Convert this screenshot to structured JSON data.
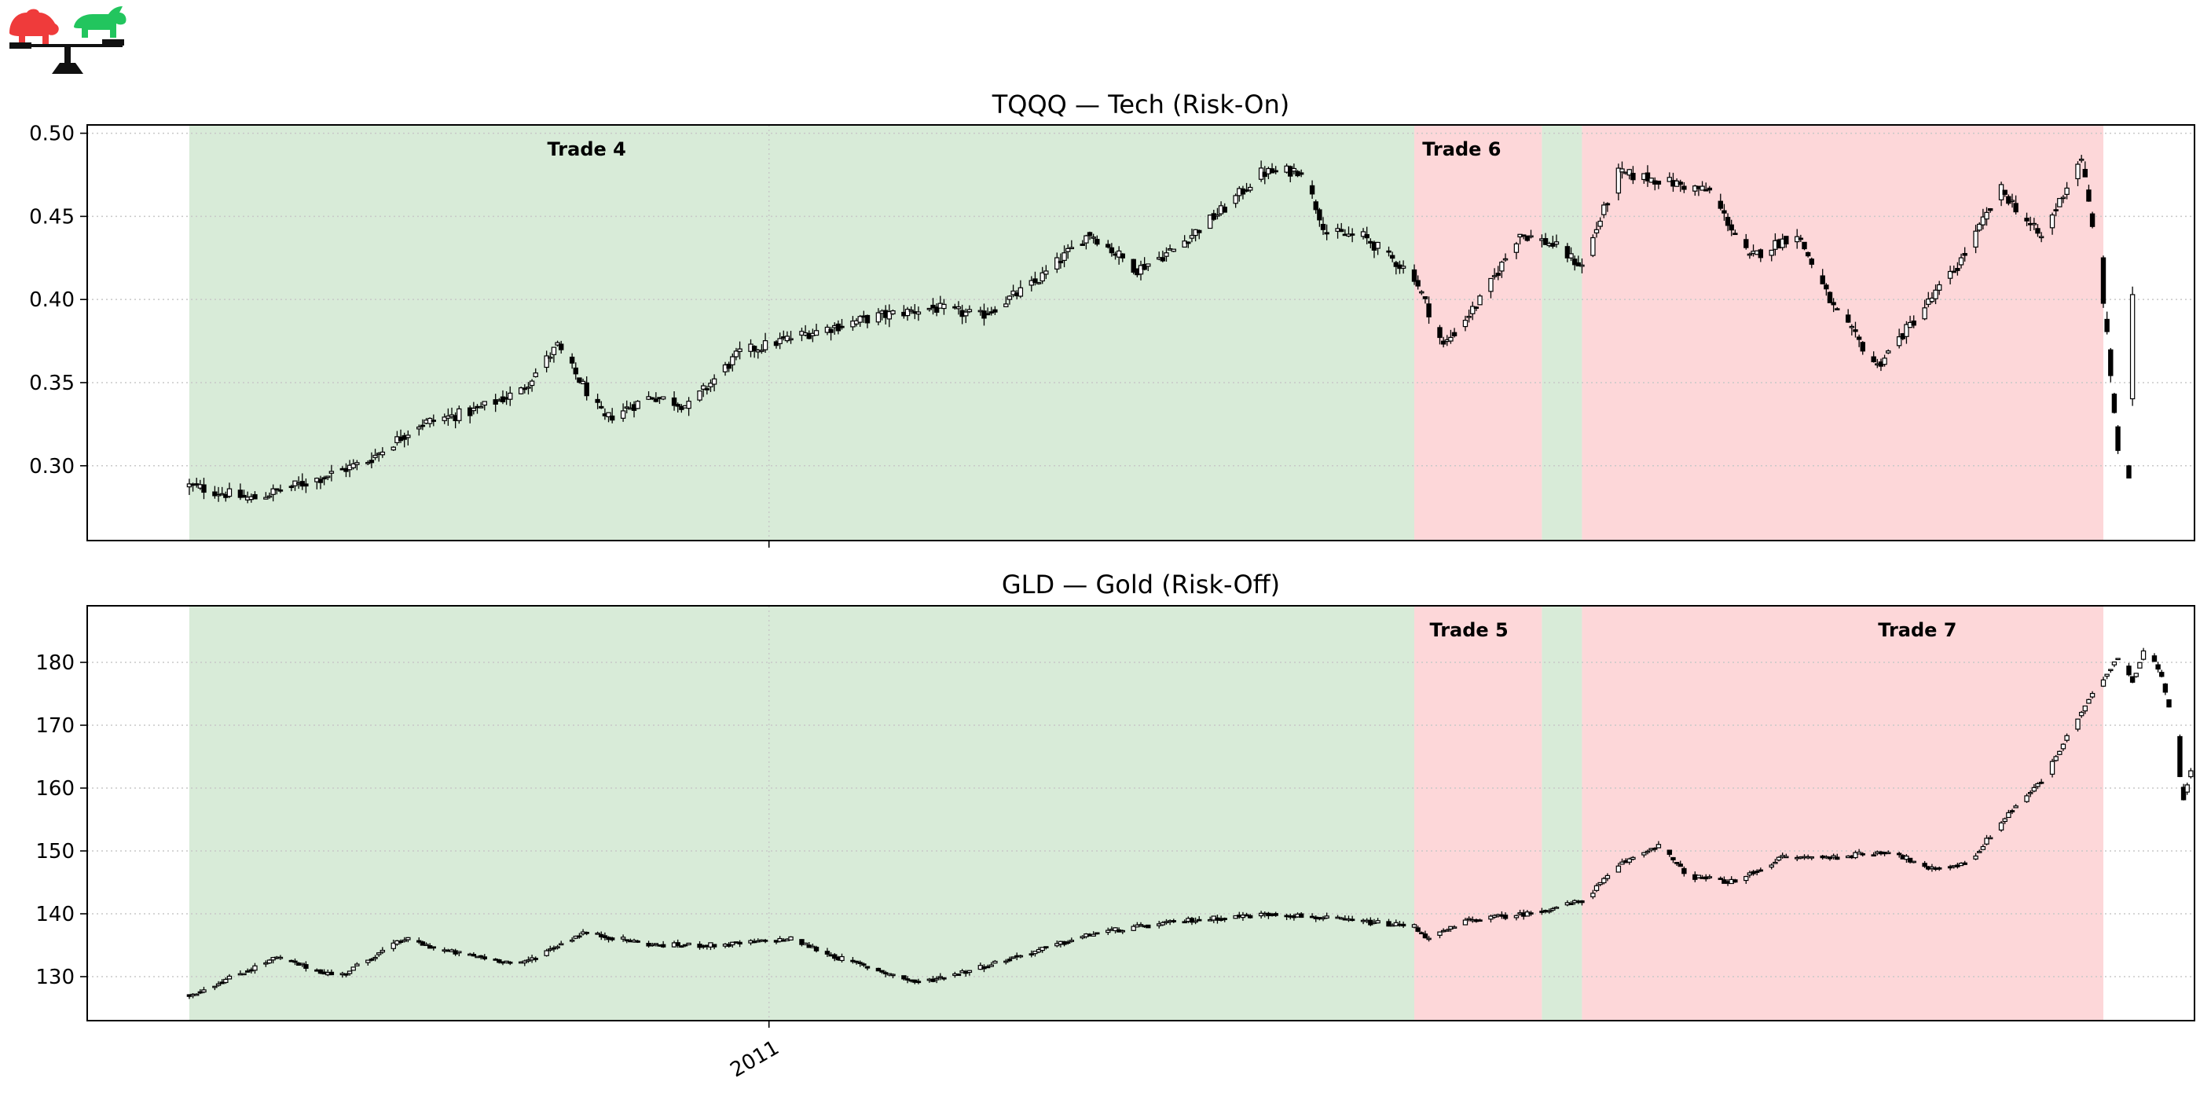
{
  "logo": {
    "bear_color": "#ef3b3b",
    "bull_color": "#22c55e",
    "scale_color": "#111111"
  },
  "colors": {
    "risk_on_shade": "#d8ebd8",
    "risk_off_shade": "#fdd7d9",
    "candle": "#000000",
    "grid": "#c8c8c8"
  },
  "chart_data": [
    {
      "type": "candlestick",
      "title": "TQQQ — Tech (Risk-On)",
      "xlabel": "",
      "ylabel": "",
      "x_tick_labels": [
        {
          "date": "2011-01-01",
          "label": ""
        }
      ],
      "x_range": [
        "2010-06-28",
        "2012-01-27"
      ],
      "ylim": [
        0.255,
        0.505
      ],
      "yticks": [
        "0.30",
        "0.35",
        "0.40",
        "0.45",
        "0.50"
      ],
      "grid": "horizontal dotted",
      "regimes": [
        {
          "start": "2010-07-26",
          "end": "2011-06-27",
          "state": "risk-on"
        },
        {
          "start": "2011-06-27",
          "end": "2011-08-01",
          "state": "risk-off"
        },
        {
          "start": "2011-08-01",
          "end": "2011-08-12",
          "state": "risk-on"
        },
        {
          "start": "2011-08-12",
          "end": "2012-01-02",
          "state": "risk-off"
        }
      ],
      "trades": [
        {
          "label": "Trade 4",
          "date": "2010-11-12"
        },
        {
          "label": "Trade 6",
          "date": "2011-07-10"
        }
      ],
      "price_path": [
        [
          "2010-07-26",
          0.288
        ],
        [
          "2010-08-12",
          0.28
        ],
        [
          "2010-08-30",
          0.292
        ],
        [
          "2010-09-13",
          0.303
        ],
        [
          "2010-09-27",
          0.325
        ],
        [
          "2010-10-12",
          0.333
        ],
        [
          "2010-10-25",
          0.345
        ],
        [
          "2010-11-04",
          0.372
        ],
        [
          "2010-11-17",
          0.328
        ],
        [
          "2010-11-30",
          0.342
        ],
        [
          "2010-12-10",
          0.336
        ],
        [
          "2010-12-24",
          0.368
        ],
        [
          "2011-01-12",
          0.38
        ],
        [
          "2011-01-31",
          0.39
        ],
        [
          "2011-02-15",
          0.395
        ],
        [
          "2011-02-28",
          0.39
        ],
        [
          "2011-03-15",
          0.41
        ],
        [
          "2011-03-30",
          0.44
        ],
        [
          "2011-04-12",
          0.418
        ],
        [
          "2011-04-22",
          0.43
        ],
        [
          "2011-05-06",
          0.455
        ],
        [
          "2011-05-16",
          0.476
        ],
        [
          "2011-05-27",
          0.478
        ],
        [
          "2011-06-03",
          0.44
        ],
        [
          "2011-06-13",
          0.438
        ],
        [
          "2011-06-27",
          0.414
        ],
        [
          "2011-07-05",
          0.372
        ],
        [
          "2011-07-16",
          0.402
        ],
        [
          "2011-07-26",
          0.44
        ],
        [
          "2011-08-04",
          0.433
        ],
        [
          "2011-08-12",
          0.42
        ],
        [
          "2011-08-22",
          0.476
        ],
        [
          "2011-09-02",
          0.472
        ],
        [
          "2011-09-16",
          0.465
        ],
        [
          "2011-09-27",
          0.425
        ],
        [
          "2011-10-10",
          0.44
        ],
        [
          "2011-10-20",
          0.395
        ],
        [
          "2011-11-01",
          0.36
        ],
        [
          "2011-11-12",
          0.39
        ],
        [
          "2011-11-23",
          0.42
        ],
        [
          "2011-12-05",
          0.466
        ],
        [
          "2011-12-16",
          0.437
        ],
        [
          "2011-12-27",
          0.486
        ],
        [
          "2012-01-02",
          0.4
        ],
        [
          "2012-01-06",
          0.31
        ],
        [
          "2012-01-09",
          0.29
        ],
        [
          "2012-01-10",
          0.4
        ]
      ]
    },
    {
      "type": "candlestick",
      "title": "GLD — Gold (Risk-Off)",
      "xlabel": "",
      "ylabel": "",
      "x_tick_labels": [
        {
          "date": "2011-01-01",
          "label": "2011"
        }
      ],
      "x_range": [
        "2010-06-28",
        "2012-01-27"
      ],
      "ylim": [
        123,
        189
      ],
      "yticks": [
        "130",
        "140",
        "150",
        "160",
        "170",
        "180"
      ],
      "grid": "horizontal dotted",
      "regimes": [
        {
          "start": "2010-07-26",
          "end": "2011-06-27",
          "state": "risk-on"
        },
        {
          "start": "2011-06-27",
          "end": "2011-08-01",
          "state": "risk-off"
        },
        {
          "start": "2011-08-01",
          "end": "2011-08-12",
          "state": "risk-on"
        },
        {
          "start": "2011-08-12",
          "end": "2012-01-02",
          "state": "risk-off"
        }
      ],
      "trades": [
        {
          "label": "Trade 5",
          "date": "2011-07-12"
        },
        {
          "label": "Trade 7",
          "date": "2011-11-12"
        }
      ],
      "price_path": [
        [
          "2010-07-26",
          127
        ],
        [
          "2010-08-19",
          133
        ],
        [
          "2010-09-05",
          130
        ],
        [
          "2010-09-23",
          136
        ],
        [
          "2010-10-05",
          134
        ],
        [
          "2010-10-25",
          132
        ],
        [
          "2010-11-11",
          137
        ],
        [
          "2010-12-01",
          135
        ],
        [
          "2010-12-19",
          135
        ],
        [
          "2011-01-07",
          136
        ],
        [
          "2011-01-20",
          133
        ],
        [
          "2011-02-11",
          129
        ],
        [
          "2011-02-25",
          131
        ],
        [
          "2011-03-15",
          134
        ],
        [
          "2011-04-01",
          137
        ],
        [
          "2011-04-27",
          139
        ],
        [
          "2011-05-20",
          140
        ],
        [
          "2011-06-27",
          138
        ],
        [
          "2011-07-01",
          136
        ],
        [
          "2011-07-12",
          139
        ],
        [
          "2011-07-28",
          140
        ],
        [
          "2011-08-12",
          142
        ],
        [
          "2011-08-23",
          148
        ],
        [
          "2011-09-02",
          151
        ],
        [
          "2011-09-10",
          146
        ],
        [
          "2011-09-23",
          145
        ],
        [
          "2011-10-06",
          149
        ],
        [
          "2011-10-20",
          149
        ],
        [
          "2011-11-05",
          150
        ],
        [
          "2011-11-15",
          147
        ],
        [
          "2011-11-26",
          148
        ],
        [
          "2011-12-07",
          156
        ],
        [
          "2011-12-16",
          161
        ],
        [
          "2011-12-27",
          172
        ],
        [
          "2012-01-06",
          181
        ],
        [
          "2012-01-10",
          177
        ],
        [
          "2012-01-14",
          183
        ],
        [
          "2012-01-18",
          178
        ],
        [
          "2012-01-21",
          170
        ],
        [
          "2012-01-24",
          158
        ],
        [
          "2012-01-26",
          163
        ]
      ]
    }
  ]
}
